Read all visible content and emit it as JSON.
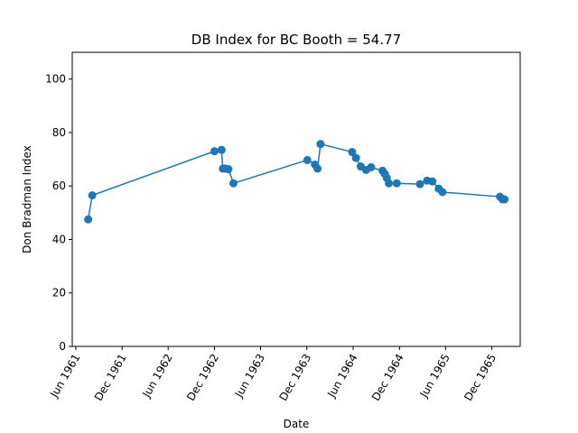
{
  "chart_data": {
    "type": "line",
    "title": "DB Index for BC Booth = 54.77",
    "xlabel": "Date",
    "ylabel": "Don Bradman Index",
    "ylim": [
      0,
      110
    ],
    "xlim": [
      "1961-05-18",
      "1966-03-23"
    ],
    "yticks": [
      0,
      20,
      40,
      60,
      80,
      100
    ],
    "xticks": [
      {
        "date": "1961-06-01",
        "label": "Jun 1961"
      },
      {
        "date": "1961-12-01",
        "label": "Dec 1961"
      },
      {
        "date": "1962-06-01",
        "label": "Jun 1962"
      },
      {
        "date": "1962-12-01",
        "label": "Dec 1962"
      },
      {
        "date": "1963-06-01",
        "label": "Jun 1963"
      },
      {
        "date": "1963-12-01",
        "label": "Dec 1963"
      },
      {
        "date": "1964-06-01",
        "label": "Jun 1964"
      },
      {
        "date": "1964-12-01",
        "label": "Dec 1964"
      },
      {
        "date": "1965-06-01",
        "label": "Jun 1965"
      },
      {
        "date": "1965-12-01",
        "label": "Dec 1965"
      }
    ],
    "color": "#1f77b4",
    "grid": false,
    "series": [
      {
        "points": [
          {
            "x": "1961-07-20",
            "y": 47.5
          },
          {
            "x": "1961-08-05",
            "y": 56.5
          },
          {
            "x": "1962-12-01",
            "y": 73.0
          },
          {
            "x": "1962-12-29",
            "y": 73.5
          },
          {
            "x": "1963-01-03",
            "y": 66.5
          },
          {
            "x": "1963-01-13",
            "y": 66.5
          },
          {
            "x": "1963-01-25",
            "y": 66.3
          },
          {
            "x": "1963-02-14",
            "y": 61.0
          },
          {
            "x": "1963-12-03",
            "y": 69.7
          },
          {
            "x": "1964-01-02",
            "y": 68.0
          },
          {
            "x": "1964-01-12",
            "y": 66.5
          },
          {
            "x": "1964-01-24",
            "y": 75.7
          },
          {
            "x": "1964-05-28",
            "y": 72.7
          },
          {
            "x": "1964-06-12",
            "y": 70.5
          },
          {
            "x": "1964-07-01",
            "y": 67.3
          },
          {
            "x": "1964-07-22",
            "y": 66.0
          },
          {
            "x": "1964-08-11",
            "y": 67.0
          },
          {
            "x": "1964-09-25",
            "y": 65.7
          },
          {
            "x": "1964-10-04",
            "y": 64.5
          },
          {
            "x": "1964-10-12",
            "y": 63.0
          },
          {
            "x": "1964-10-20",
            "y": 61.0
          },
          {
            "x": "1964-11-20",
            "y": 61.0
          },
          {
            "x": "1965-02-20",
            "y": 60.7
          },
          {
            "x": "1965-03-20",
            "y": 62.0
          },
          {
            "x": "1965-04-10",
            "y": 61.7
          },
          {
            "x": "1965-05-05",
            "y": 59.0
          },
          {
            "x": "1965-05-20",
            "y": 57.7
          },
          {
            "x": "1966-01-02",
            "y": 56.0
          },
          {
            "x": "1966-01-12",
            "y": 55.0
          },
          {
            "x": "1966-01-20",
            "y": 55.0
          }
        ]
      }
    ]
  }
}
